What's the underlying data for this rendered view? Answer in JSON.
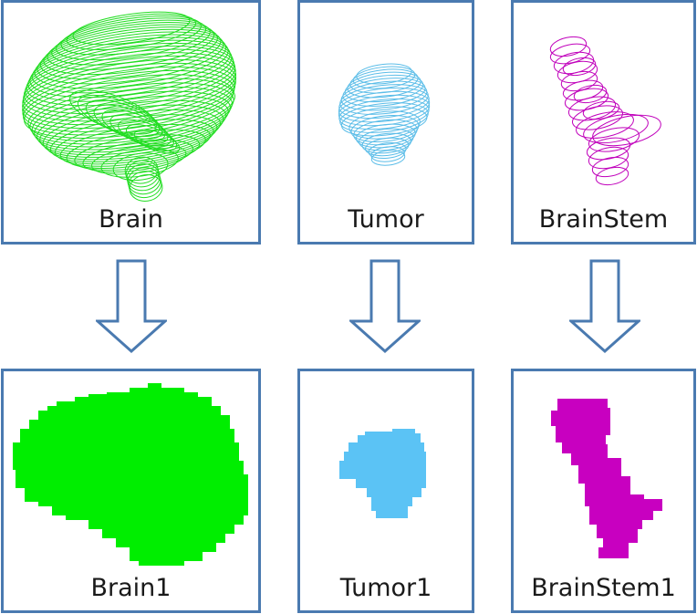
{
  "top_row": [
    {
      "id": "brain",
      "label": "Brain"
    },
    {
      "id": "tumor",
      "label": "Tumor"
    },
    {
      "id": "brainstem",
      "label": "BrainStem"
    }
  ],
  "bottom_row": [
    {
      "id": "brain1",
      "label": "Brain1"
    },
    {
      "id": "tumor1",
      "label": "Tumor1"
    },
    {
      "id": "brainstem1",
      "label": "BrainStem1"
    }
  ],
  "colors": {
    "border": "#4a7ab0",
    "brain": "#00ee00",
    "tumor": "#5bc3f5",
    "brainstem": "#c800c0"
  }
}
